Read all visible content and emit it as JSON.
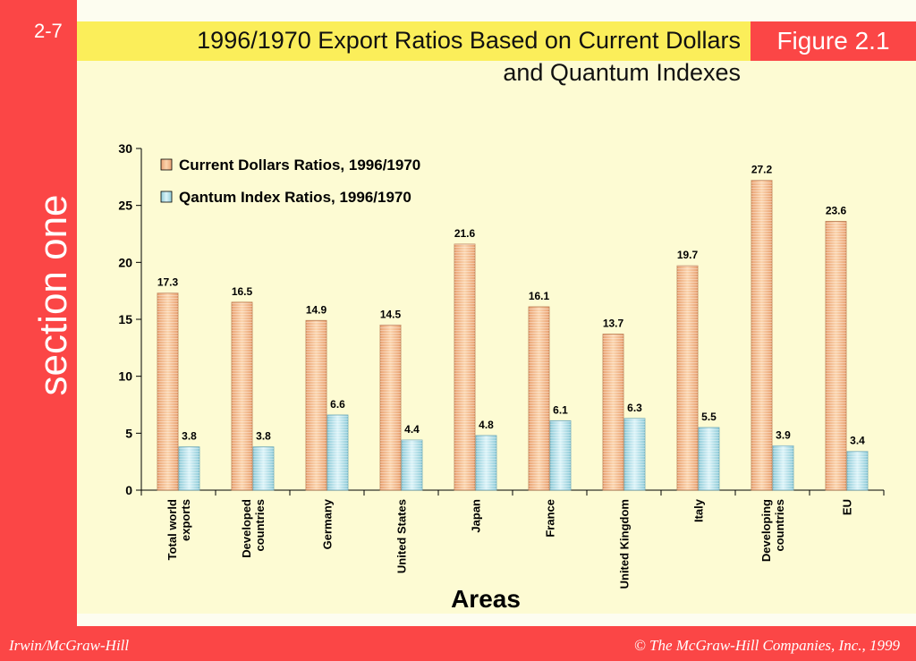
{
  "slide": {
    "number": "2-7",
    "section": "section one",
    "figure_label": "Figure 2.1",
    "title_line1": "1996/1970  Export Ratios Based on Current Dollars",
    "title_line2": "and Quantum Indexes",
    "footer_left": "Irwin/McGraw-Hill",
    "footer_right": "© The McGraw-Hill Companies, Inc., 1999",
    "colors": {
      "red_band": "#fb4646",
      "title_band": "#fbee5a",
      "panel": "#fdfbd3"
    }
  },
  "chart_data": {
    "type": "bar",
    "xlabel": "Areas",
    "ylabel": "",
    "ylim": [
      0,
      30
    ],
    "yticks": [
      0,
      5,
      10,
      15,
      20,
      25,
      30
    ],
    "legend_position": "top-left",
    "categories": [
      "Total world exports",
      "Developed countries",
      "Germany",
      "United States",
      "Japan",
      "France",
      "United Kingdom",
      "Italy",
      "Developing countries",
      "EU"
    ],
    "category_lines": [
      [
        "Total world",
        "exports"
      ],
      [
        "Developed",
        "countries"
      ],
      [
        "Germany"
      ],
      [
        "United States"
      ],
      [
        "Japan"
      ],
      [
        "France"
      ],
      [
        "United Kingdom"
      ],
      [
        "Italy"
      ],
      [
        "Developing",
        "countries"
      ],
      [
        "EU"
      ]
    ],
    "series": [
      {
        "name": "Current Dollars Ratios, 1996/1970",
        "color": "#f7c08e",
        "values": [
          17.3,
          16.5,
          14.9,
          14.5,
          21.6,
          16.1,
          13.7,
          19.7,
          27.2,
          23.6
        ]
      },
      {
        "name": "Qantum Index Ratios, 1996/1970",
        "color": "#bfe6ef",
        "values": [
          3.8,
          3.8,
          6.6,
          4.4,
          4.8,
          6.1,
          6.3,
          5.5,
          3.9,
          3.4
        ]
      }
    ]
  }
}
